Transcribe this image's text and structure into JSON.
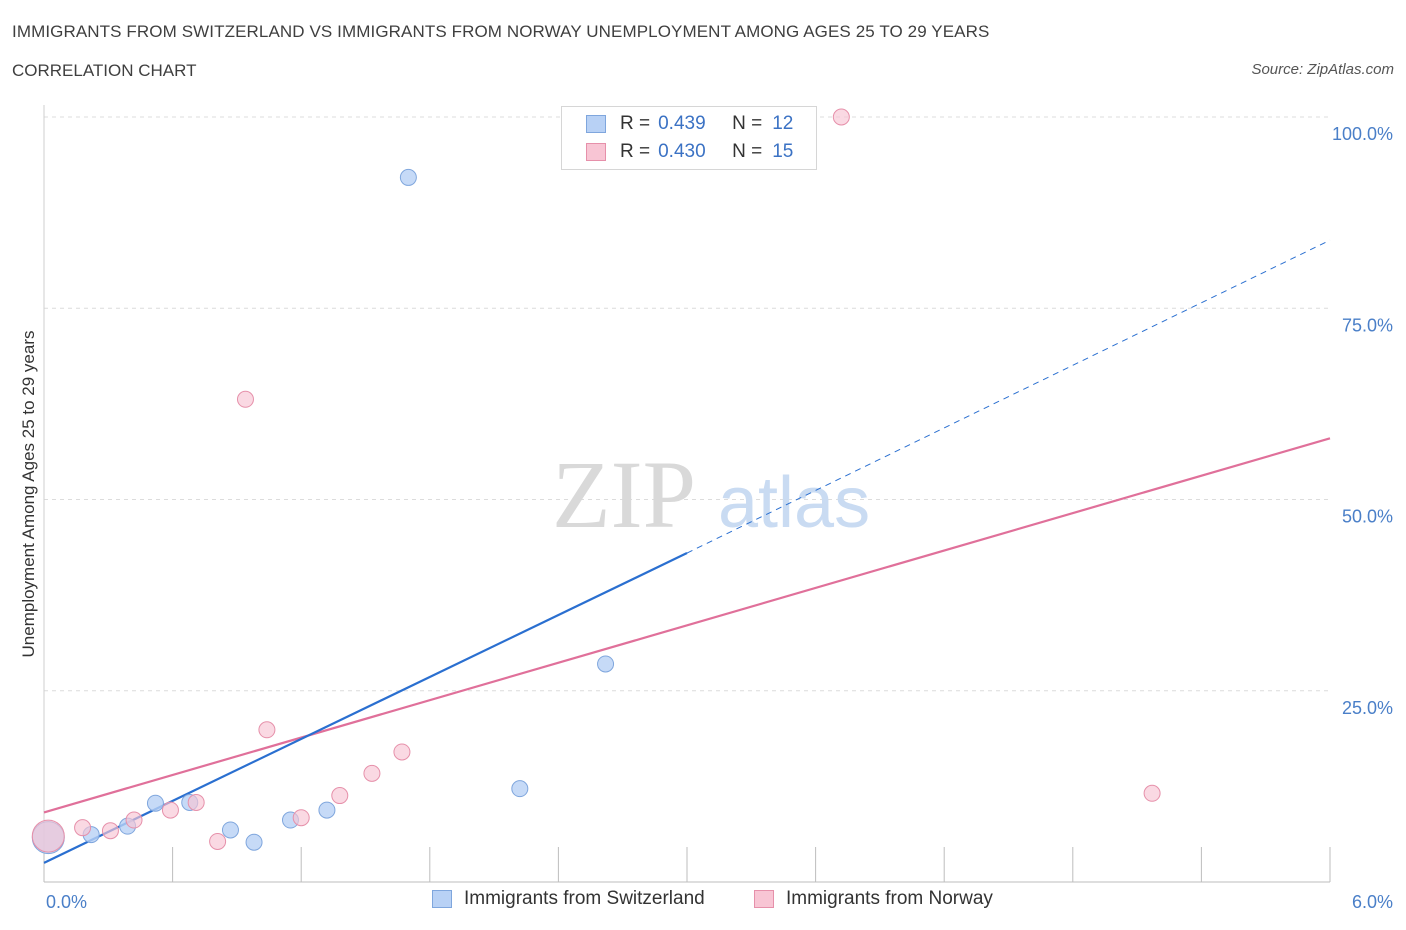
{
  "header": {
    "title": "IMMIGRANTS FROM SWITZERLAND VS IMMIGRANTS FROM NORWAY UNEMPLOYMENT AMONG AGES 25 TO 29 YEARS",
    "subtitle": "CORRELATION CHART",
    "source": "Source: ZipAtlas.com"
  },
  "watermark": {
    "zip": "ZIP",
    "atlas": "atlas"
  },
  "legend": {
    "r_label": "R =",
    "n_label": "N =",
    "rows": [
      {
        "r": "0.439",
        "n": "12",
        "fill": "#b8d1f5",
        "stroke": "#7fa6dd"
      },
      {
        "r": "0.430",
        "n": "15",
        "fill": "#f8c5d4",
        "stroke": "#e690aa"
      }
    ]
  },
  "colors": {
    "switzerland_fill": "#b8d1f5",
    "switzerland_stroke": "#7fa6dd",
    "switzerland_line": "#2a6fd0",
    "norway_fill": "#f8c5d4",
    "norway_stroke": "#e690aa",
    "norway_line": "#e0709a",
    "grid": "#dcdcdc",
    "tick_text": "#4a7fc8"
  },
  "chart_data": {
    "type": "scatter",
    "title": "IMMIGRANTS FROM SWITZERLAND VS IMMIGRANTS FROM NORWAY UNEMPLOYMENT AMONG AGES 25 TO 29 YEARS",
    "xlabel": "",
    "ylabel": "Unemployment Among Ages 25 to 29 years",
    "xlim": [
      0,
      6
    ],
    "ylim": [
      0,
      100
    ],
    "x_tick_labels": [
      "0.0%",
      "6.0%"
    ],
    "y_tick_labels": [
      "100.0%",
      "75.0%",
      "50.0%",
      "25.0%"
    ],
    "y_ticks": [
      100,
      75,
      50,
      25
    ],
    "grid": true,
    "legend_position": "top-center",
    "series": [
      {
        "name": "Immigrants from Switzerland",
        "points": [
          {
            "x": 0.02,
            "y": 5.8,
            "big": true
          },
          {
            "x": 0.22,
            "y": 6.2
          },
          {
            "x": 0.39,
            "y": 7.3
          },
          {
            "x": 0.52,
            "y": 10.3
          },
          {
            "x": 0.68,
            "y": 10.4
          },
          {
            "x": 0.87,
            "y": 6.8
          },
          {
            "x": 0.98,
            "y": 5.2
          },
          {
            "x": 1.15,
            "y": 8.1
          },
          {
            "x": 1.32,
            "y": 9.4
          },
          {
            "x": 1.7,
            "y": 92.1
          },
          {
            "x": 2.22,
            "y": 12.2
          },
          {
            "x": 2.62,
            "y": 28.5
          }
        ],
        "trend": {
          "x0": 0,
          "y0": 2.5,
          "x1": 3.0,
          "y1": 43.0,
          "dashed_to_x": 6.0,
          "dashed_to_y": 83.9
        }
      },
      {
        "name": "Immigrants from Norway",
        "points": [
          {
            "x": 0.02,
            "y": 6.0,
            "big": true
          },
          {
            "x": 0.18,
            "y": 7.1
          },
          {
            "x": 0.31,
            "y": 6.7
          },
          {
            "x": 0.42,
            "y": 8.1
          },
          {
            "x": 0.59,
            "y": 9.4
          },
          {
            "x": 0.71,
            "y": 10.4
          },
          {
            "x": 0.81,
            "y": 5.3
          },
          {
            "x": 0.94,
            "y": 63.1
          },
          {
            "x": 1.04,
            "y": 19.9
          },
          {
            "x": 1.2,
            "y": 8.4
          },
          {
            "x": 1.38,
            "y": 11.3
          },
          {
            "x": 1.53,
            "y": 14.2
          },
          {
            "x": 1.67,
            "y": 17.0
          },
          {
            "x": 3.72,
            "y": 100.0
          },
          {
            "x": 5.17,
            "y": 11.6
          }
        ],
        "trend": {
          "x0": 0,
          "y0": 9.1,
          "x1": 6.0,
          "y1": 58.0
        }
      }
    ]
  }
}
